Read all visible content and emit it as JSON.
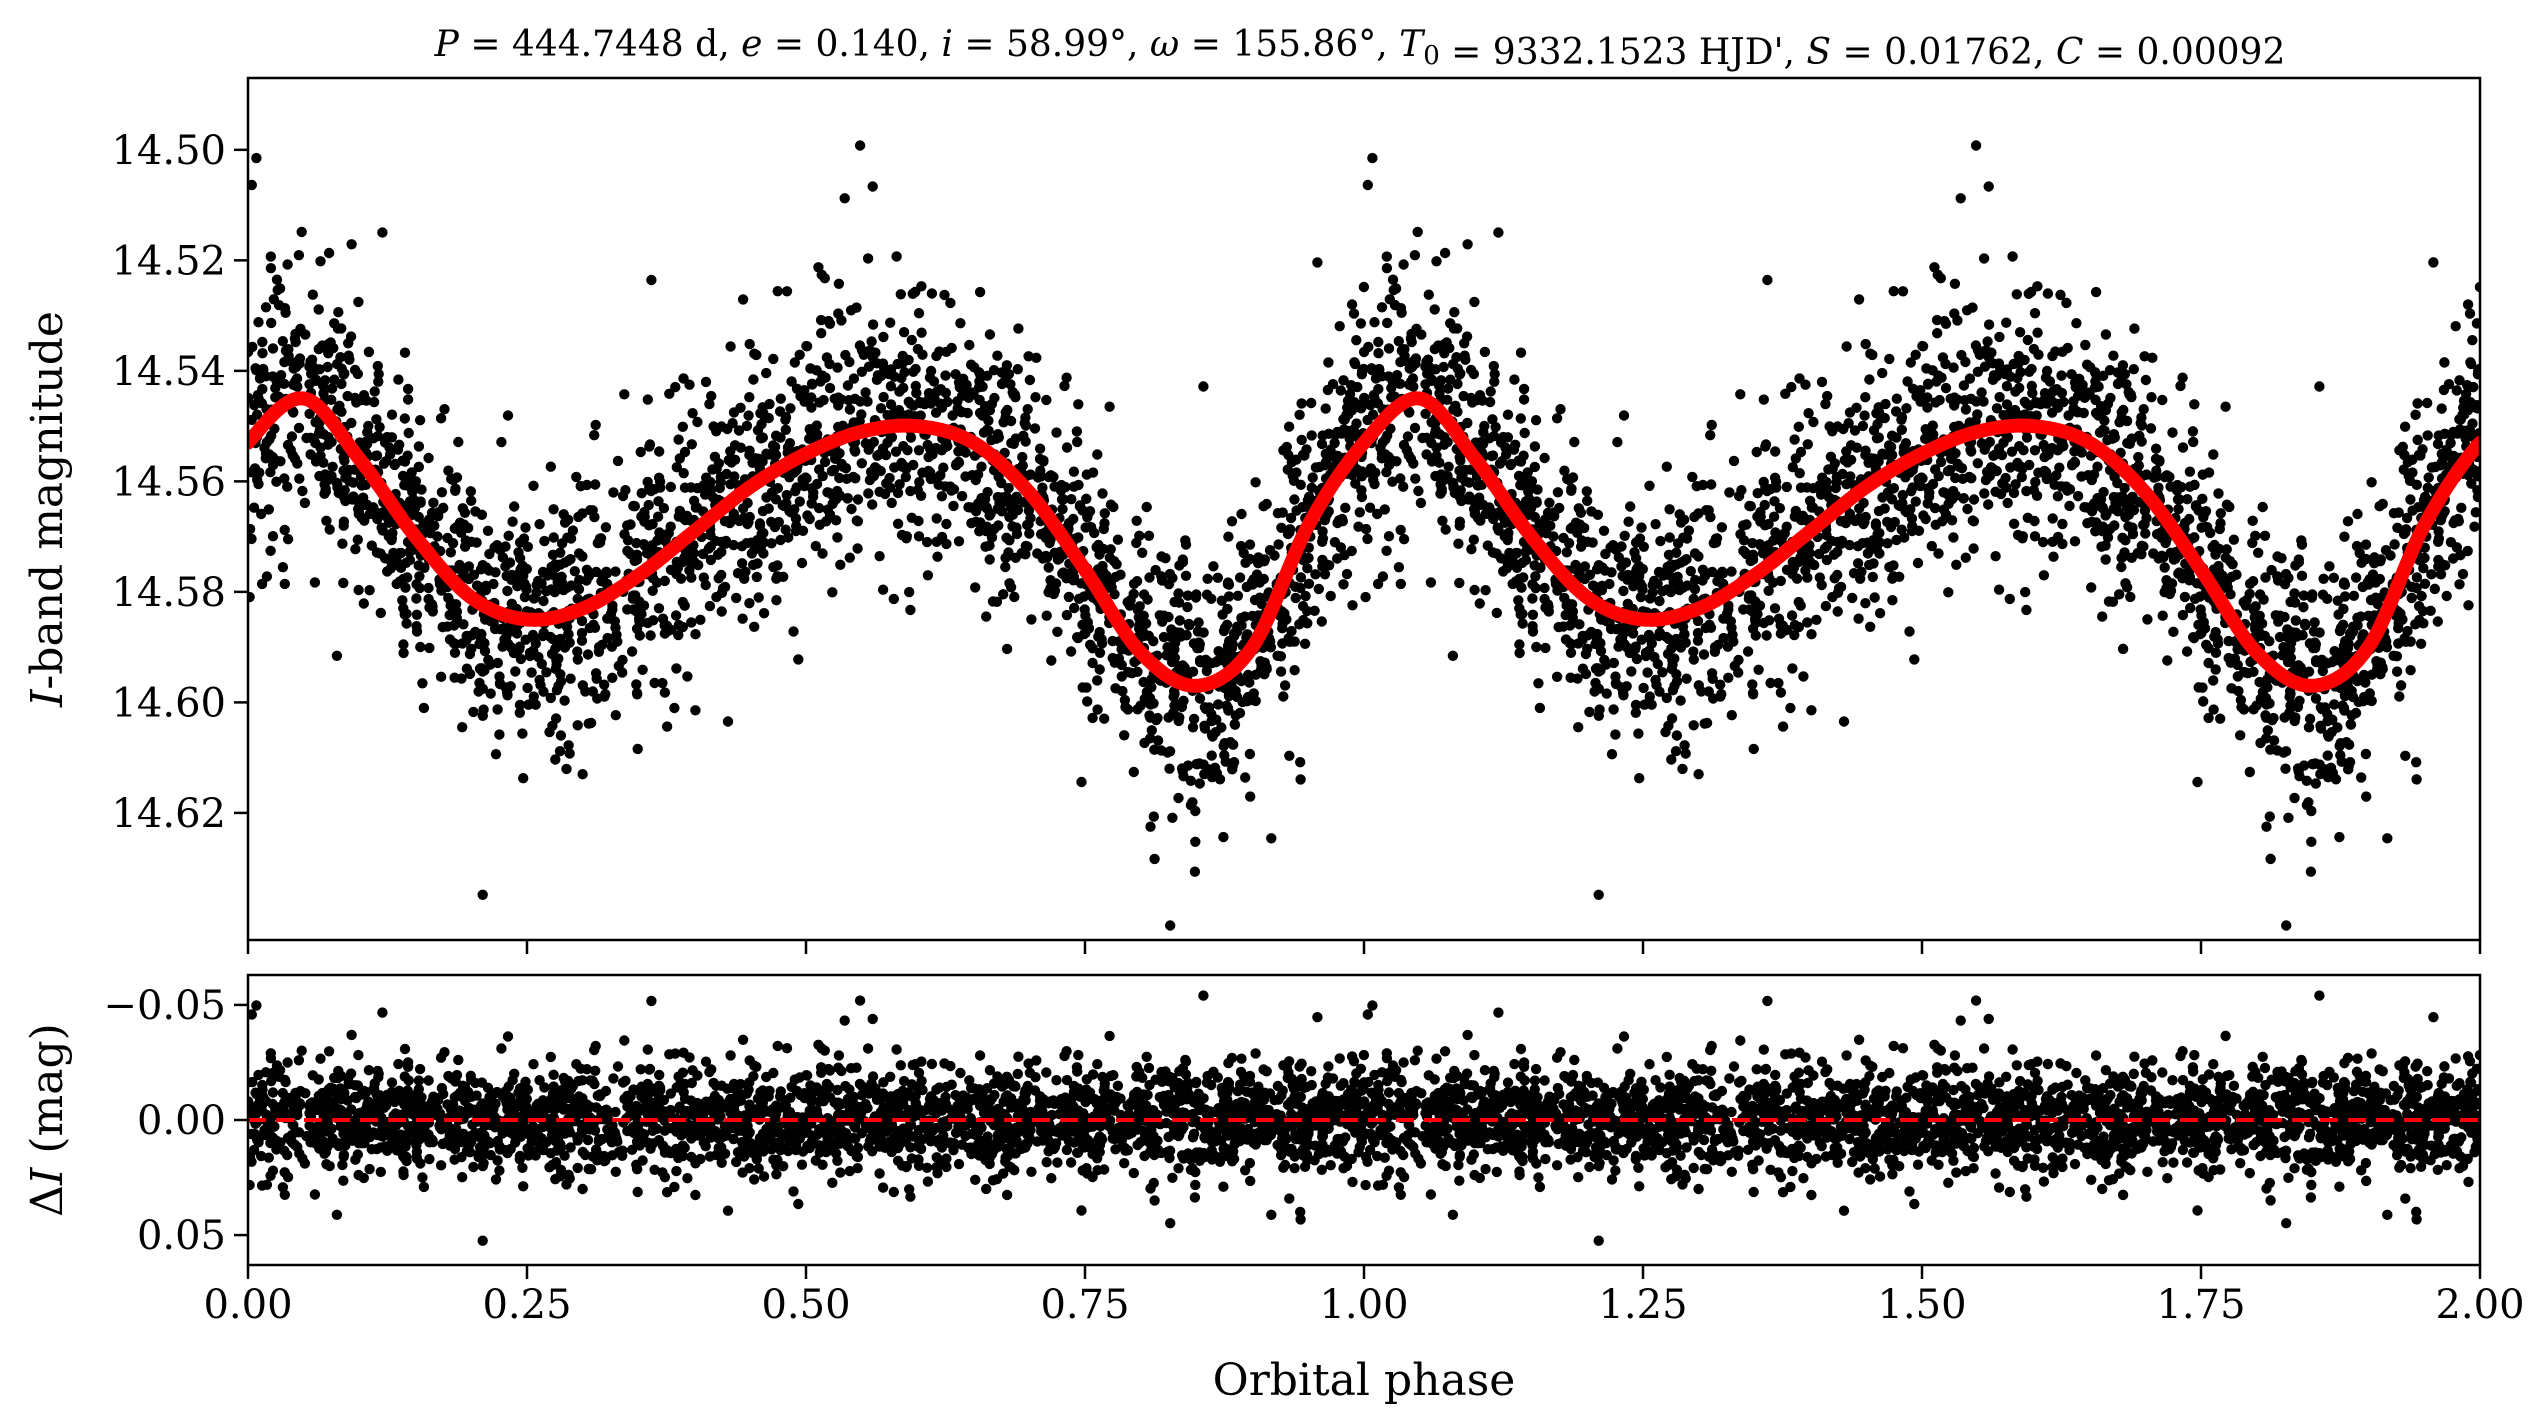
{
  "chart_data": [
    {
      "type": "scatter",
      "panel": "light-curve",
      "title": "P = 444.7448 d, e = 0.140, i = 58.99°, ω = 155.86°, T0 = 9332.1523 HJD', S = 0.01762, C = 0.00092",
      "xlabel": "",
      "ylabel": "I-band magnitude",
      "xlim": [
        0.0,
        2.0
      ],
      "ylim": [
        14.643,
        14.487
      ],
      "y_inverted": true,
      "yticks": [
        14.5,
        14.52,
        14.54,
        14.56,
        14.58,
        14.6,
        14.62
      ],
      "ytick_labels": [
        "14.50",
        "14.52",
        "14.54",
        "14.56",
        "14.58",
        "14.60",
        "14.62"
      ],
      "xticks": [
        0.0,
        0.25,
        0.5,
        0.75,
        1.0,
        1.25,
        1.5,
        1.75,
        2.0
      ],
      "grid": false,
      "series": [
        {
          "kind": "observations",
          "marker_color": "#000000",
          "note_scatter_half_range": 0.028,
          "x": [
            0.0,
            0.05,
            0.1,
            0.15,
            0.2,
            0.25,
            0.3,
            0.35,
            0.4,
            0.45,
            0.5,
            0.55,
            0.6,
            0.65,
            0.7,
            0.75,
            0.8,
            0.85,
            0.9,
            0.95,
            1.0
          ],
          "y": [
            14.553,
            14.545,
            14.556,
            14.57,
            14.581,
            14.585,
            14.583,
            14.577,
            14.569,
            14.561,
            14.555,
            14.551,
            14.55,
            14.553,
            14.562,
            14.576,
            14.591,
            14.597,
            14.59,
            14.568,
            14.553
          ]
        },
        {
          "kind": "model",
          "line_color": "#ff0000",
          "x": [
            0.0,
            0.05,
            0.1,
            0.15,
            0.2,
            0.25,
            0.3,
            0.35,
            0.4,
            0.45,
            0.5,
            0.55,
            0.6,
            0.65,
            0.7,
            0.75,
            0.8,
            0.85,
            0.9,
            0.95,
            1.0
          ],
          "y": [
            14.553,
            14.545,
            14.556,
            14.57,
            14.581,
            14.585,
            14.583,
            14.577,
            14.569,
            14.561,
            14.555,
            14.551,
            14.55,
            14.553,
            14.562,
            14.576,
            14.591,
            14.597,
            14.59,
            14.568,
            14.553
          ]
        }
      ]
    },
    {
      "type": "scatter",
      "panel": "residuals",
      "xlabel": "Orbital phase",
      "ylabel": "ΔI (mag)",
      "xlim": [
        0.0,
        2.0
      ],
      "ylim": [
        0.063,
        -0.063
      ],
      "y_inverted": true,
      "yticks": [
        -0.05,
        0.0,
        0.05
      ],
      "ytick_labels": [
        "−0.05",
        "0.00",
        "0.05"
      ],
      "xticks": [
        0.0,
        0.25,
        0.5,
        0.75,
        1.0,
        1.25,
        1.5,
        1.75,
        2.0
      ],
      "xtick_labels": [
        "0.00",
        "0.25",
        "0.50",
        "0.75",
        "1.00",
        "1.25",
        "1.50",
        "1.75",
        "2.00"
      ],
      "grid": false,
      "series": [
        {
          "kind": "residuals",
          "marker_color": "#000000",
          "note_scatter_half_range": 0.05,
          "x": [
            0.0,
            2.0
          ],
          "y": [
            0.0,
            0.0
          ]
        },
        {
          "kind": "zero-line",
          "line_color": "#ff0000",
          "line_style": "dashed",
          "x": [
            0.0,
            2.0
          ],
          "y": [
            0.0,
            0.0
          ]
        }
      ]
    }
  ]
}
